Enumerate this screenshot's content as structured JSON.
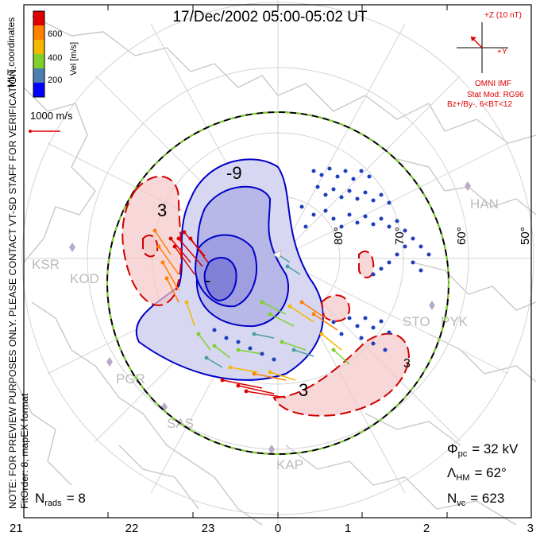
{
  "title": "17/Dec/2002 05:00-05:02 UT",
  "coordinates": "MLT coordinates",
  "colorbar": {
    "label": "Vel [m/s]",
    "ticks": [
      "600",
      "400",
      "200"
    ],
    "colors": [
      "#0000ff",
      "#4a7fb0",
      "#7fd12a",
      "#f5b800",
      "#ff7f00",
      "#e00000"
    ]
  },
  "velocity_scale": "1000 m/s",
  "side_note_1": "NOTE: FOR PREVIEW PURPOSES ONLY. PLEASE CONTACT VT-SD STAFF FOR VERIFICATION.",
  "side_note_2": "FitOrder: 8, mapEX format",
  "imf": {
    "z_label": "+Z (10 nT)",
    "y_label": "+Y",
    "source": "OMNI IMF",
    "model": "Stat Mod: RG96",
    "condition": "Bz+/By-, 6<BT<12"
  },
  "stats": {
    "phi_pc": {
      "symbol": "Φ",
      "sub": "pc",
      "value": "= 32 kV"
    },
    "lambda_hm": {
      "symbol": "Λ",
      "sub": "HM",
      "value": "= 62°"
    },
    "n_vc": {
      "symbol": "N",
      "sub": "vc",
      "value": "= 623"
    },
    "n_rads": {
      "symbol": "N",
      "sub": "rads",
      "value": "= 8"
    }
  },
  "mlt_ticks": [
    "21",
    "22",
    "23",
    "0",
    "1",
    "2",
    "3"
  ],
  "latitudes": [
    "80°",
    "70°",
    "60°",
    "50°"
  ],
  "stations": [
    "HAN",
    "KSR",
    "KOD",
    "PGR",
    "SAS",
    "KAP",
    "STO",
    "PYK"
  ],
  "contour_labels": [
    "-9",
    "3",
    "-",
    "3",
    "3"
  ],
  "colors": {
    "negative_contour": "#0000c8",
    "positive_contour": "#d00000",
    "negative_fill": "#b8b8e8",
    "positive_fill": "#f3c6c6",
    "boundary_green": "#7fd12a",
    "land": "#c8c8c8"
  }
}
